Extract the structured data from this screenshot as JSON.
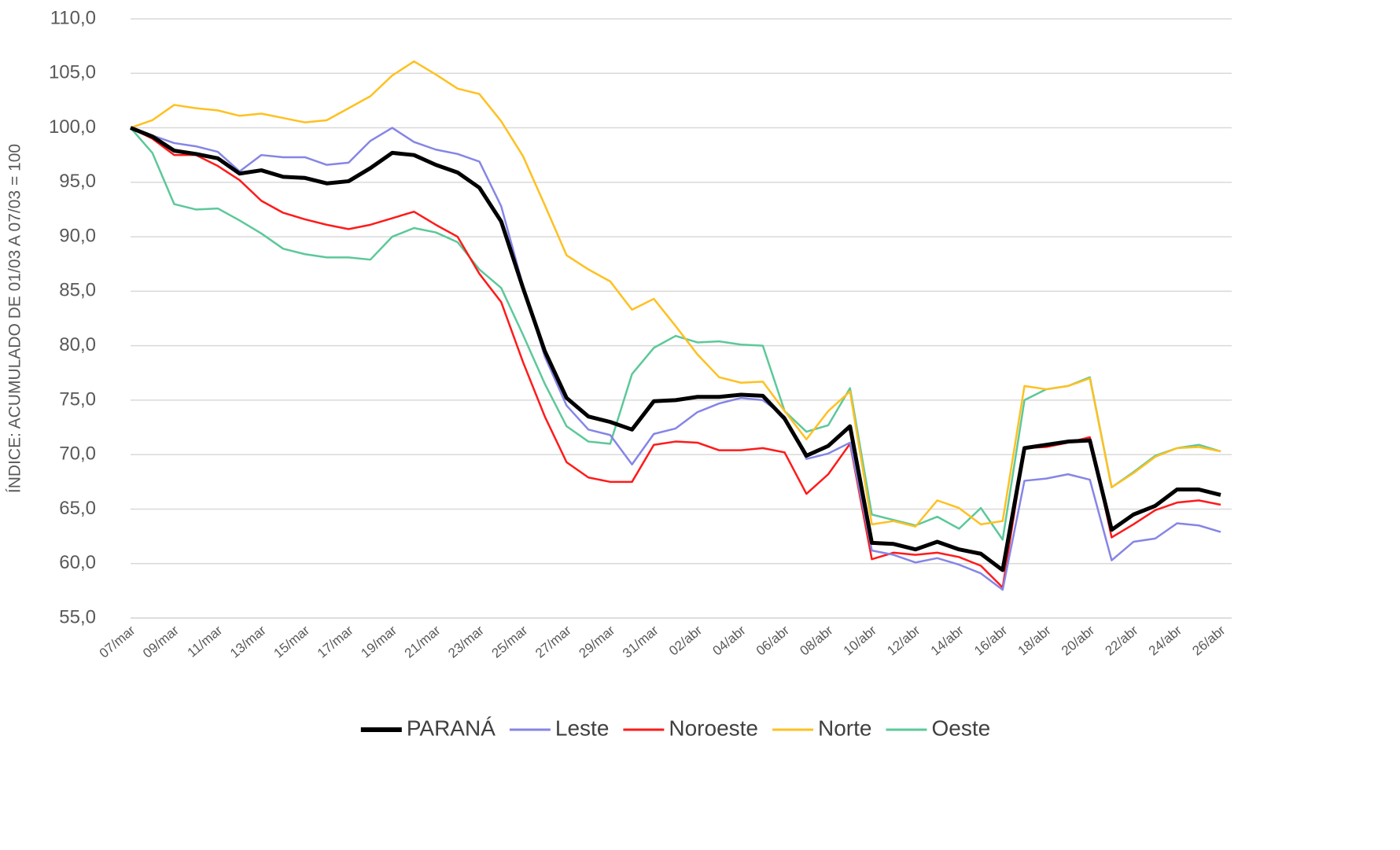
{
  "chart_data": {
    "type": "line",
    "y_label": "ÍNDICE: ACUMULADO DE 01/03 A 07/03 = 100",
    "categories": [
      "07/mar",
      null,
      "09/mar",
      null,
      "11/mar",
      null,
      "13/mar",
      null,
      "15/mar",
      null,
      "17/mar",
      null,
      "19/mar",
      null,
      "21/mar",
      null,
      "23/mar",
      null,
      "25/mar",
      null,
      "27/mar",
      null,
      "29/mar",
      null,
      "31/mar",
      null,
      "02/abr",
      null,
      "04/abr",
      null,
      "06/abr",
      null,
      "08/abr",
      null,
      "10/abr",
      null,
      "12/abr",
      null,
      "14/abr",
      null,
      "16/abr",
      null,
      "18/abr",
      null,
      "20/abr",
      null,
      "22/abr",
      null,
      "24/abr",
      null,
      "26/abr"
    ],
    "ylim": [
      55,
      110
    ],
    "yticks": [
      {
        "value": 55,
        "label": "55,0"
      },
      {
        "value": 60,
        "label": "60,0"
      },
      {
        "value": 65,
        "label": "65,0"
      },
      {
        "value": 70,
        "label": "70,0"
      },
      {
        "value": 75,
        "label": "75,0"
      },
      {
        "value": 80,
        "label": "80,0"
      },
      {
        "value": 85,
        "label": "85,0"
      },
      {
        "value": 90,
        "label": "90,0"
      },
      {
        "value": 95,
        "label": "95,0"
      },
      {
        "value": 100,
        "label": "100,0"
      },
      {
        "value": 105,
        "label": "105,0"
      },
      {
        "value": 110,
        "label": "110,0"
      }
    ],
    "grid": true,
    "legend": "bottom",
    "series": [
      {
        "name": "PARANÁ",
        "color": "#000000",
        "values": [
          100,
          99.2,
          97.9,
          97.6,
          97.2,
          95.8,
          96.1,
          95.5,
          95.4,
          94.9,
          95.1,
          96.3,
          97.7,
          97.5,
          96.6,
          95.9,
          94.5,
          91.4,
          85.3,
          79.5,
          75.2,
          73.5,
          73.0,
          72.3,
          74.9,
          75.0,
          75.3,
          75.3,
          75.5,
          75.4,
          73.3,
          69.9,
          70.8,
          72.6,
          61.9,
          61.8,
          61.3,
          62.0,
          61.3,
          60.9,
          59.4,
          70.6,
          70.9,
          71.2,
          71.3,
          63.1,
          64.5,
          65.3,
          66.8,
          66.8,
          66.3
        ]
      },
      {
        "name": "Leste",
        "color": "#8585e6",
        "values": [
          100,
          99.3,
          98.6,
          98.3,
          97.8,
          96.0,
          97.5,
          97.3,
          97.3,
          96.6,
          96.8,
          98.8,
          100.0,
          98.7,
          98.0,
          97.6,
          96.9,
          92.8,
          85.5,
          79.0,
          74.5,
          72.3,
          71.8,
          69.1,
          71.9,
          72.4,
          73.9,
          74.7,
          75.2,
          75.0,
          73.5,
          69.6,
          70.1,
          71.1,
          61.2,
          60.8,
          60.1,
          60.5,
          59.9,
          59.1,
          57.6,
          67.6,
          67.8,
          68.2,
          67.7,
          60.3,
          62.0,
          62.3,
          63.7,
          63.5,
          62.9
        ]
      },
      {
        "name": "Noroeste",
        "color": "#ff1a1a",
        "values": [
          100,
          99.0,
          97.5,
          97.5,
          96.5,
          95.2,
          93.3,
          92.2,
          91.6,
          91.1,
          90.7,
          91.1,
          91.7,
          92.3,
          91.1,
          90.0,
          86.6,
          84.0,
          78.5,
          73.5,
          69.3,
          67.9,
          67.5,
          67.5,
          70.9,
          71.2,
          71.1,
          70.4,
          70.4,
          70.6,
          70.2,
          66.4,
          68.2,
          71.0,
          60.4,
          61.0,
          60.8,
          61.0,
          60.6,
          59.8,
          57.8,
          70.6,
          70.7,
          71.1,
          71.6,
          62.4,
          63.6,
          64.9,
          65.6,
          65.8,
          65.4
        ]
      },
      {
        "name": "Norte",
        "color": "#ffc020",
        "values": [
          100,
          100.7,
          102.1,
          101.8,
          101.6,
          101.1,
          101.3,
          100.9,
          100.5,
          100.7,
          101.8,
          102.9,
          104.8,
          106.1,
          104.9,
          103.6,
          103.1,
          100.6,
          97.4,
          92.9,
          88.3,
          87.0,
          85.9,
          83.3,
          84.3,
          81.8,
          79.2,
          77.1,
          76.6,
          76.7,
          74.0,
          71.4,
          74.0,
          75.8,
          63.6,
          63.9,
          63.4,
          65.8,
          65.1,
          63.6,
          63.9,
          76.3,
          76.0,
          76.3,
          77.0,
          67.0,
          68.3,
          69.8,
          70.6,
          70.7,
          70.3
        ]
      },
      {
        "name": "Oeste",
        "color": "#5cc89a",
        "values": [
          100,
          97.7,
          93.0,
          92.5,
          92.6,
          91.5,
          90.3,
          88.9,
          88.4,
          88.1,
          88.1,
          87.9,
          90.0,
          90.8,
          90.4,
          89.5,
          87.0,
          85.3,
          81.0,
          76.5,
          72.6,
          71.2,
          71.0,
          77.4,
          79.8,
          80.9,
          80.3,
          80.4,
          80.1,
          80.0,
          74.0,
          72.1,
          72.7,
          76.1,
          64.5,
          64.0,
          63.5,
          64.3,
          63.2,
          65.1,
          62.2,
          75.0,
          76.0,
          76.3,
          77.1,
          67.0,
          68.4,
          69.9,
          70.6,
          70.9,
          70.3
        ]
      }
    ]
  }
}
